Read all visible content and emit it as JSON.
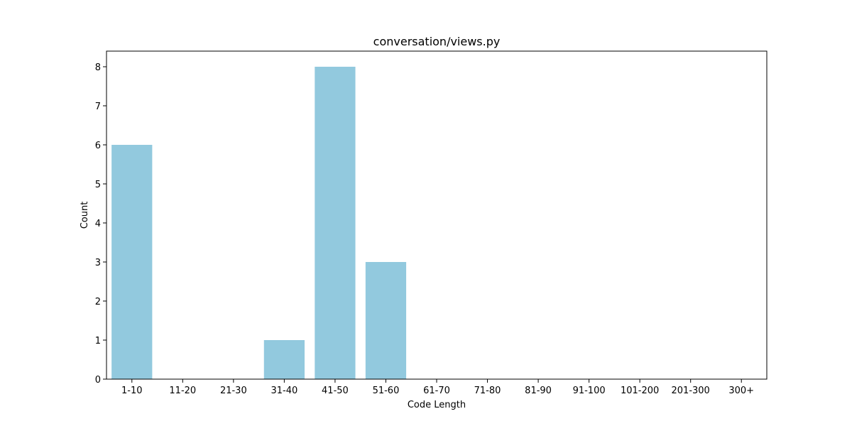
{
  "chart_data": {
    "type": "bar",
    "title": "conversation/views.py",
    "xlabel": "Code Length",
    "ylabel": "Count",
    "categories": [
      "1-10",
      "11-20",
      "21-30",
      "31-40",
      "41-50",
      "51-60",
      "61-70",
      "71-80",
      "81-90",
      "91-100",
      "101-200",
      "201-300",
      "300+"
    ],
    "values": [
      6,
      0,
      0,
      1,
      8,
      3,
      0,
      0,
      0,
      0,
      0,
      0,
      0
    ],
    "yticks": [
      "0",
      "1",
      "2",
      "3",
      "4",
      "5",
      "6",
      "7",
      "8"
    ],
    "ylim": [
      0,
      8.4
    ],
    "grid": false,
    "bar_color": "#92c9de"
  }
}
